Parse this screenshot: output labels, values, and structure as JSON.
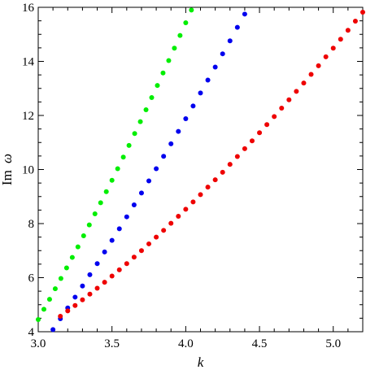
{
  "chart_data": {
    "type": "scatter",
    "title": "",
    "xlabel": "k",
    "ylabel": "Im ω",
    "ylabel_parts": [
      "Im",
      "ω"
    ],
    "xlim": [
      3.0,
      5.2
    ],
    "ylim": [
      4,
      16
    ],
    "xticks": [
      3.0,
      3.5,
      4.0,
      4.5,
      5.0
    ],
    "xtick_labels": [
      "3.0",
      "3.5",
      "4.0",
      "4.5",
      "5.0"
    ],
    "yticks": [
      4,
      6,
      8,
      10,
      12,
      14,
      16
    ],
    "ytick_labels": [
      "4",
      "6",
      "8",
      "10",
      "12",
      "14",
      "16"
    ],
    "grid": false,
    "series": [
      {
        "color": "#00ee00",
        "points": [
          [
            3.0,
            4.45
          ],
          [
            3.0385,
            4.83
          ],
          [
            3.0769,
            5.2
          ],
          [
            3.1154,
            5.59
          ],
          [
            3.1538,
            5.97
          ],
          [
            3.1923,
            6.36
          ],
          [
            3.2308,
            6.75
          ],
          [
            3.2692,
            7.14
          ],
          [
            3.3077,
            7.55
          ],
          [
            3.3462,
            7.95
          ],
          [
            3.3846,
            8.36
          ],
          [
            3.4231,
            8.77
          ],
          [
            3.4615,
            9.18
          ],
          [
            3.5,
            9.6
          ],
          [
            3.5385,
            10.03
          ],
          [
            3.5769,
            10.46
          ],
          [
            3.6154,
            10.89
          ],
          [
            3.6538,
            11.33
          ],
          [
            3.6923,
            11.77
          ],
          [
            3.7308,
            12.21
          ],
          [
            3.7692,
            12.66
          ],
          [
            3.8077,
            13.11
          ],
          [
            3.8462,
            13.57
          ],
          [
            3.8846,
            14.03
          ],
          [
            3.9231,
            14.49
          ],
          [
            3.9615,
            14.96
          ],
          [
            4.0,
            15.43
          ],
          [
            4.0385,
            15.9
          ],
          [
            4.1,
            16.2
          ],
          [
            4.15,
            16.4
          ]
        ]
      },
      {
        "color": "#0000ee",
        "points": [
          [
            3.1,
            4.08
          ],
          [
            3.15,
            4.48
          ],
          [
            3.2,
            4.88
          ],
          [
            3.25,
            5.28
          ],
          [
            3.3,
            5.69
          ],
          [
            3.35,
            6.11
          ],
          [
            3.4,
            6.52
          ],
          [
            3.45,
            6.95
          ],
          [
            3.5,
            7.38
          ],
          [
            3.55,
            7.81
          ],
          [
            3.6,
            8.25
          ],
          [
            3.65,
            8.69
          ],
          [
            3.7,
            9.13
          ],
          [
            3.75,
            9.58
          ],
          [
            3.8,
            10.03
          ],
          [
            3.85,
            10.49
          ],
          [
            3.9,
            10.95
          ],
          [
            3.95,
            11.41
          ],
          [
            4.0,
            11.88
          ],
          [
            4.05,
            12.35
          ],
          [
            4.1,
            12.83
          ],
          [
            4.15,
            13.31
          ],
          [
            4.2,
            13.79
          ],
          [
            4.25,
            14.28
          ],
          [
            4.3,
            14.76
          ],
          [
            4.35,
            15.26
          ],
          [
            4.4,
            15.75
          ]
        ]
      },
      {
        "color": "#ee0000",
        "points": [
          [
            3.15,
            4.57
          ],
          [
            3.2,
            4.77
          ],
          [
            3.25,
            4.97
          ],
          [
            3.3,
            5.18
          ],
          [
            3.35,
            5.39
          ],
          [
            3.4,
            5.61
          ],
          [
            3.45,
            5.83
          ],
          [
            3.5,
            6.06
          ],
          [
            3.55,
            6.29
          ],
          [
            3.6,
            6.52
          ],
          [
            3.65,
            6.76
          ],
          [
            3.7,
            7.0
          ],
          [
            3.75,
            7.25
          ],
          [
            3.8,
            7.5
          ],
          [
            3.85,
            7.75
          ],
          [
            3.9,
            8.01
          ],
          [
            3.95,
            8.27
          ],
          [
            4.0,
            8.53
          ],
          [
            4.05,
            8.8
          ],
          [
            4.1,
            9.07
          ],
          [
            4.15,
            9.35
          ],
          [
            4.2,
            9.62
          ],
          [
            4.25,
            9.9
          ],
          [
            4.3,
            10.19
          ],
          [
            4.35,
            10.48
          ],
          [
            4.4,
            10.77
          ],
          [
            4.45,
            11.06
          ],
          [
            4.5,
            11.36
          ],
          [
            4.55,
            11.66
          ],
          [
            4.6,
            11.96
          ],
          [
            4.65,
            12.27
          ],
          [
            4.7,
            12.58
          ],
          [
            4.75,
            12.89
          ],
          [
            4.8,
            13.2
          ],
          [
            4.85,
            13.52
          ],
          [
            4.9,
            13.84
          ],
          [
            4.95,
            14.17
          ],
          [
            5.0,
            14.49
          ],
          [
            5.05,
            14.82
          ],
          [
            5.1,
            15.15
          ],
          [
            5.15,
            15.49
          ],
          [
            5.2,
            15.82
          ]
        ]
      }
    ]
  }
}
